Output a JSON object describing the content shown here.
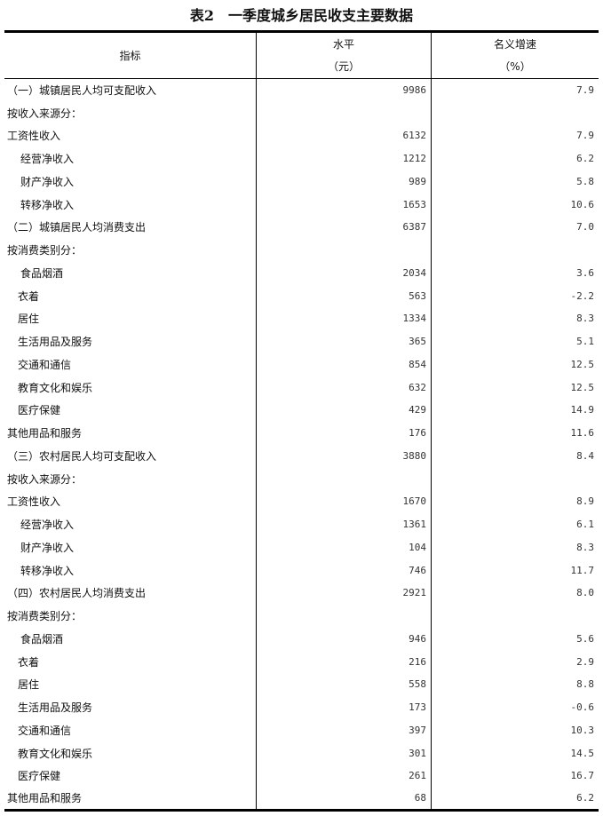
{
  "title": "表2　一季度城乡居民收支主要数据",
  "header": {
    "indicator": "指标",
    "level": "水平",
    "level_unit": "（元）",
    "growth": "名义增速",
    "growth_unit": "（%）"
  },
  "rows": [
    {
      "label": "（一）城镇居民人均可支配收入",
      "indent": 0,
      "value": "9986",
      "growth": "7.9"
    },
    {
      "label": "按收入来源分：",
      "indent": 0,
      "value": "",
      "growth": ""
    },
    {
      "label": "工资性收入",
      "indent": 0,
      "value": "6132",
      "growth": "7.9"
    },
    {
      "label": "经营净收入",
      "indent": 1,
      "value": "1212",
      "growth": "6.2"
    },
    {
      "label": "财产净收入",
      "indent": 1,
      "value": "989",
      "growth": "5.8"
    },
    {
      "label": "转移净收入",
      "indent": 1,
      "value": "1653",
      "growth": "10.6"
    },
    {
      "label": "（二）城镇居民人均消费支出",
      "indent": 0,
      "value": "6387",
      "growth": "7.0"
    },
    {
      "label": "按消费类别分：",
      "indent": 0,
      "value": "",
      "growth": ""
    },
    {
      "label": "食品烟酒",
      "indent": 1,
      "value": "2034",
      "growth": "3.6"
    },
    {
      "label": "衣着",
      "indent": 2,
      "value": "563",
      "growth": "-2.2"
    },
    {
      "label": "居住",
      "indent": 2,
      "value": "1334",
      "growth": "8.3"
    },
    {
      "label": "生活用品及服务",
      "indent": 2,
      "value": "365",
      "growth": "5.1"
    },
    {
      "label": "交通和通信",
      "indent": 2,
      "value": "854",
      "growth": "12.5"
    },
    {
      "label": "教育文化和娱乐",
      "indent": 2,
      "value": "632",
      "growth": "12.5"
    },
    {
      "label": "医疗保健",
      "indent": 2,
      "value": "429",
      "growth": "14.9"
    },
    {
      "label": "其他用品和服务",
      "indent": 0,
      "value": "176",
      "growth": "11.6"
    },
    {
      "label": "（三）农村居民人均可支配收入",
      "indent": 0,
      "value": "3880",
      "growth": "8.4"
    },
    {
      "label": "按收入来源分：",
      "indent": 0,
      "value": "",
      "growth": ""
    },
    {
      "label": "工资性收入",
      "indent": 0,
      "value": "1670",
      "growth": "8.9"
    },
    {
      "label": "经营净收入",
      "indent": 1,
      "value": "1361",
      "growth": "6.1"
    },
    {
      "label": "财产净收入",
      "indent": 1,
      "value": "104",
      "growth": "8.3"
    },
    {
      "label": "转移净收入",
      "indent": 1,
      "value": "746",
      "growth": "11.7"
    },
    {
      "label": "（四）农村居民人均消费支出",
      "indent": 0,
      "value": "2921",
      "growth": "8.0"
    },
    {
      "label": "按消费类别分：",
      "indent": 0,
      "value": "",
      "growth": ""
    },
    {
      "label": "食品烟酒",
      "indent": 1,
      "value": "946",
      "growth": "5.6"
    },
    {
      "label": "衣着",
      "indent": 2,
      "value": "216",
      "growth": "2.9"
    },
    {
      "label": "居住",
      "indent": 2,
      "value": "558",
      "growth": "8.8"
    },
    {
      "label": "生活用品及服务",
      "indent": 2,
      "value": "173",
      "growth": "-0.6"
    },
    {
      "label": "交通和通信",
      "indent": 2,
      "value": "397",
      "growth": "10.3"
    },
    {
      "label": "教育文化和娱乐",
      "indent": 2,
      "value": "301",
      "growth": "14.5"
    },
    {
      "label": "医疗保健",
      "indent": 2,
      "value": "261",
      "growth": "16.7"
    },
    {
      "label": "其他用品和服务",
      "indent": 0,
      "value": "68",
      "growth": "6.2"
    }
  ]
}
